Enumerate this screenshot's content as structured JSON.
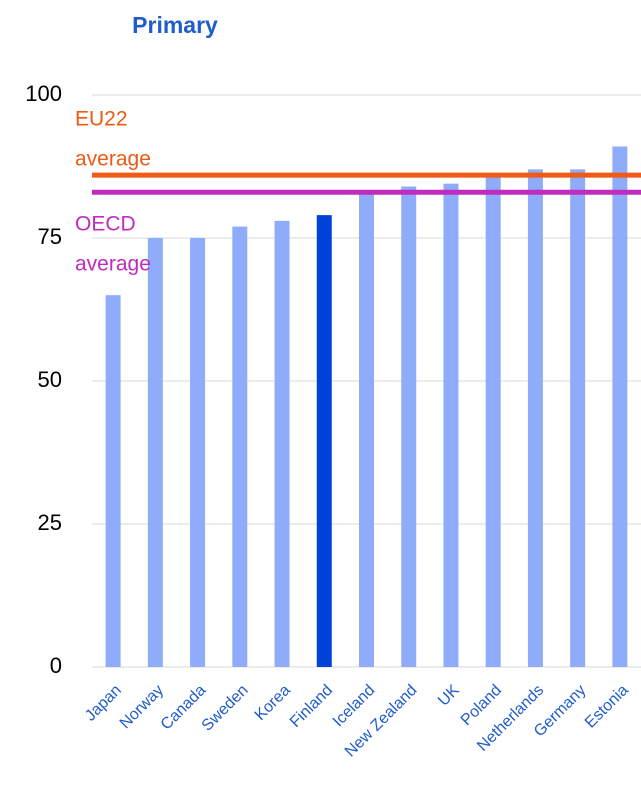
{
  "chart_data": {
    "type": "bar",
    "title": "Primary",
    "categories": [
      "Japan",
      "Norway",
      "Canada",
      "Sweden",
      "Korea",
      "Finland",
      "Iceland",
      "New Zealand",
      "UK",
      "Poland",
      "Netherlands",
      "Germany",
      "Estonia"
    ],
    "values": [
      65,
      75,
      75,
      77,
      78,
      79,
      83,
      84,
      84.5,
      86,
      87,
      87,
      91
    ],
    "colors": [
      "#8eacfa",
      "#8eacfa",
      "#8eacfa",
      "#8eacfa",
      "#8eacfa",
      "#0043d8",
      "#8eacfa",
      "#8eacfa",
      "#8eacfa",
      "#8eacfa",
      "#8eacfa",
      "#8eacfa",
      "#8eacfa"
    ],
    "ylim": [
      0,
      100
    ],
    "yticks": [
      0,
      25,
      50,
      75,
      100
    ],
    "grid": true,
    "reference_lines": [
      {
        "label_lines": [
          "EU22",
          "average"
        ],
        "value": 86,
        "color": "#f05a14"
      },
      {
        "label_lines": [
          "OECD",
          "average"
        ],
        "value": 83,
        "color": "#c02bc0"
      }
    ]
  }
}
